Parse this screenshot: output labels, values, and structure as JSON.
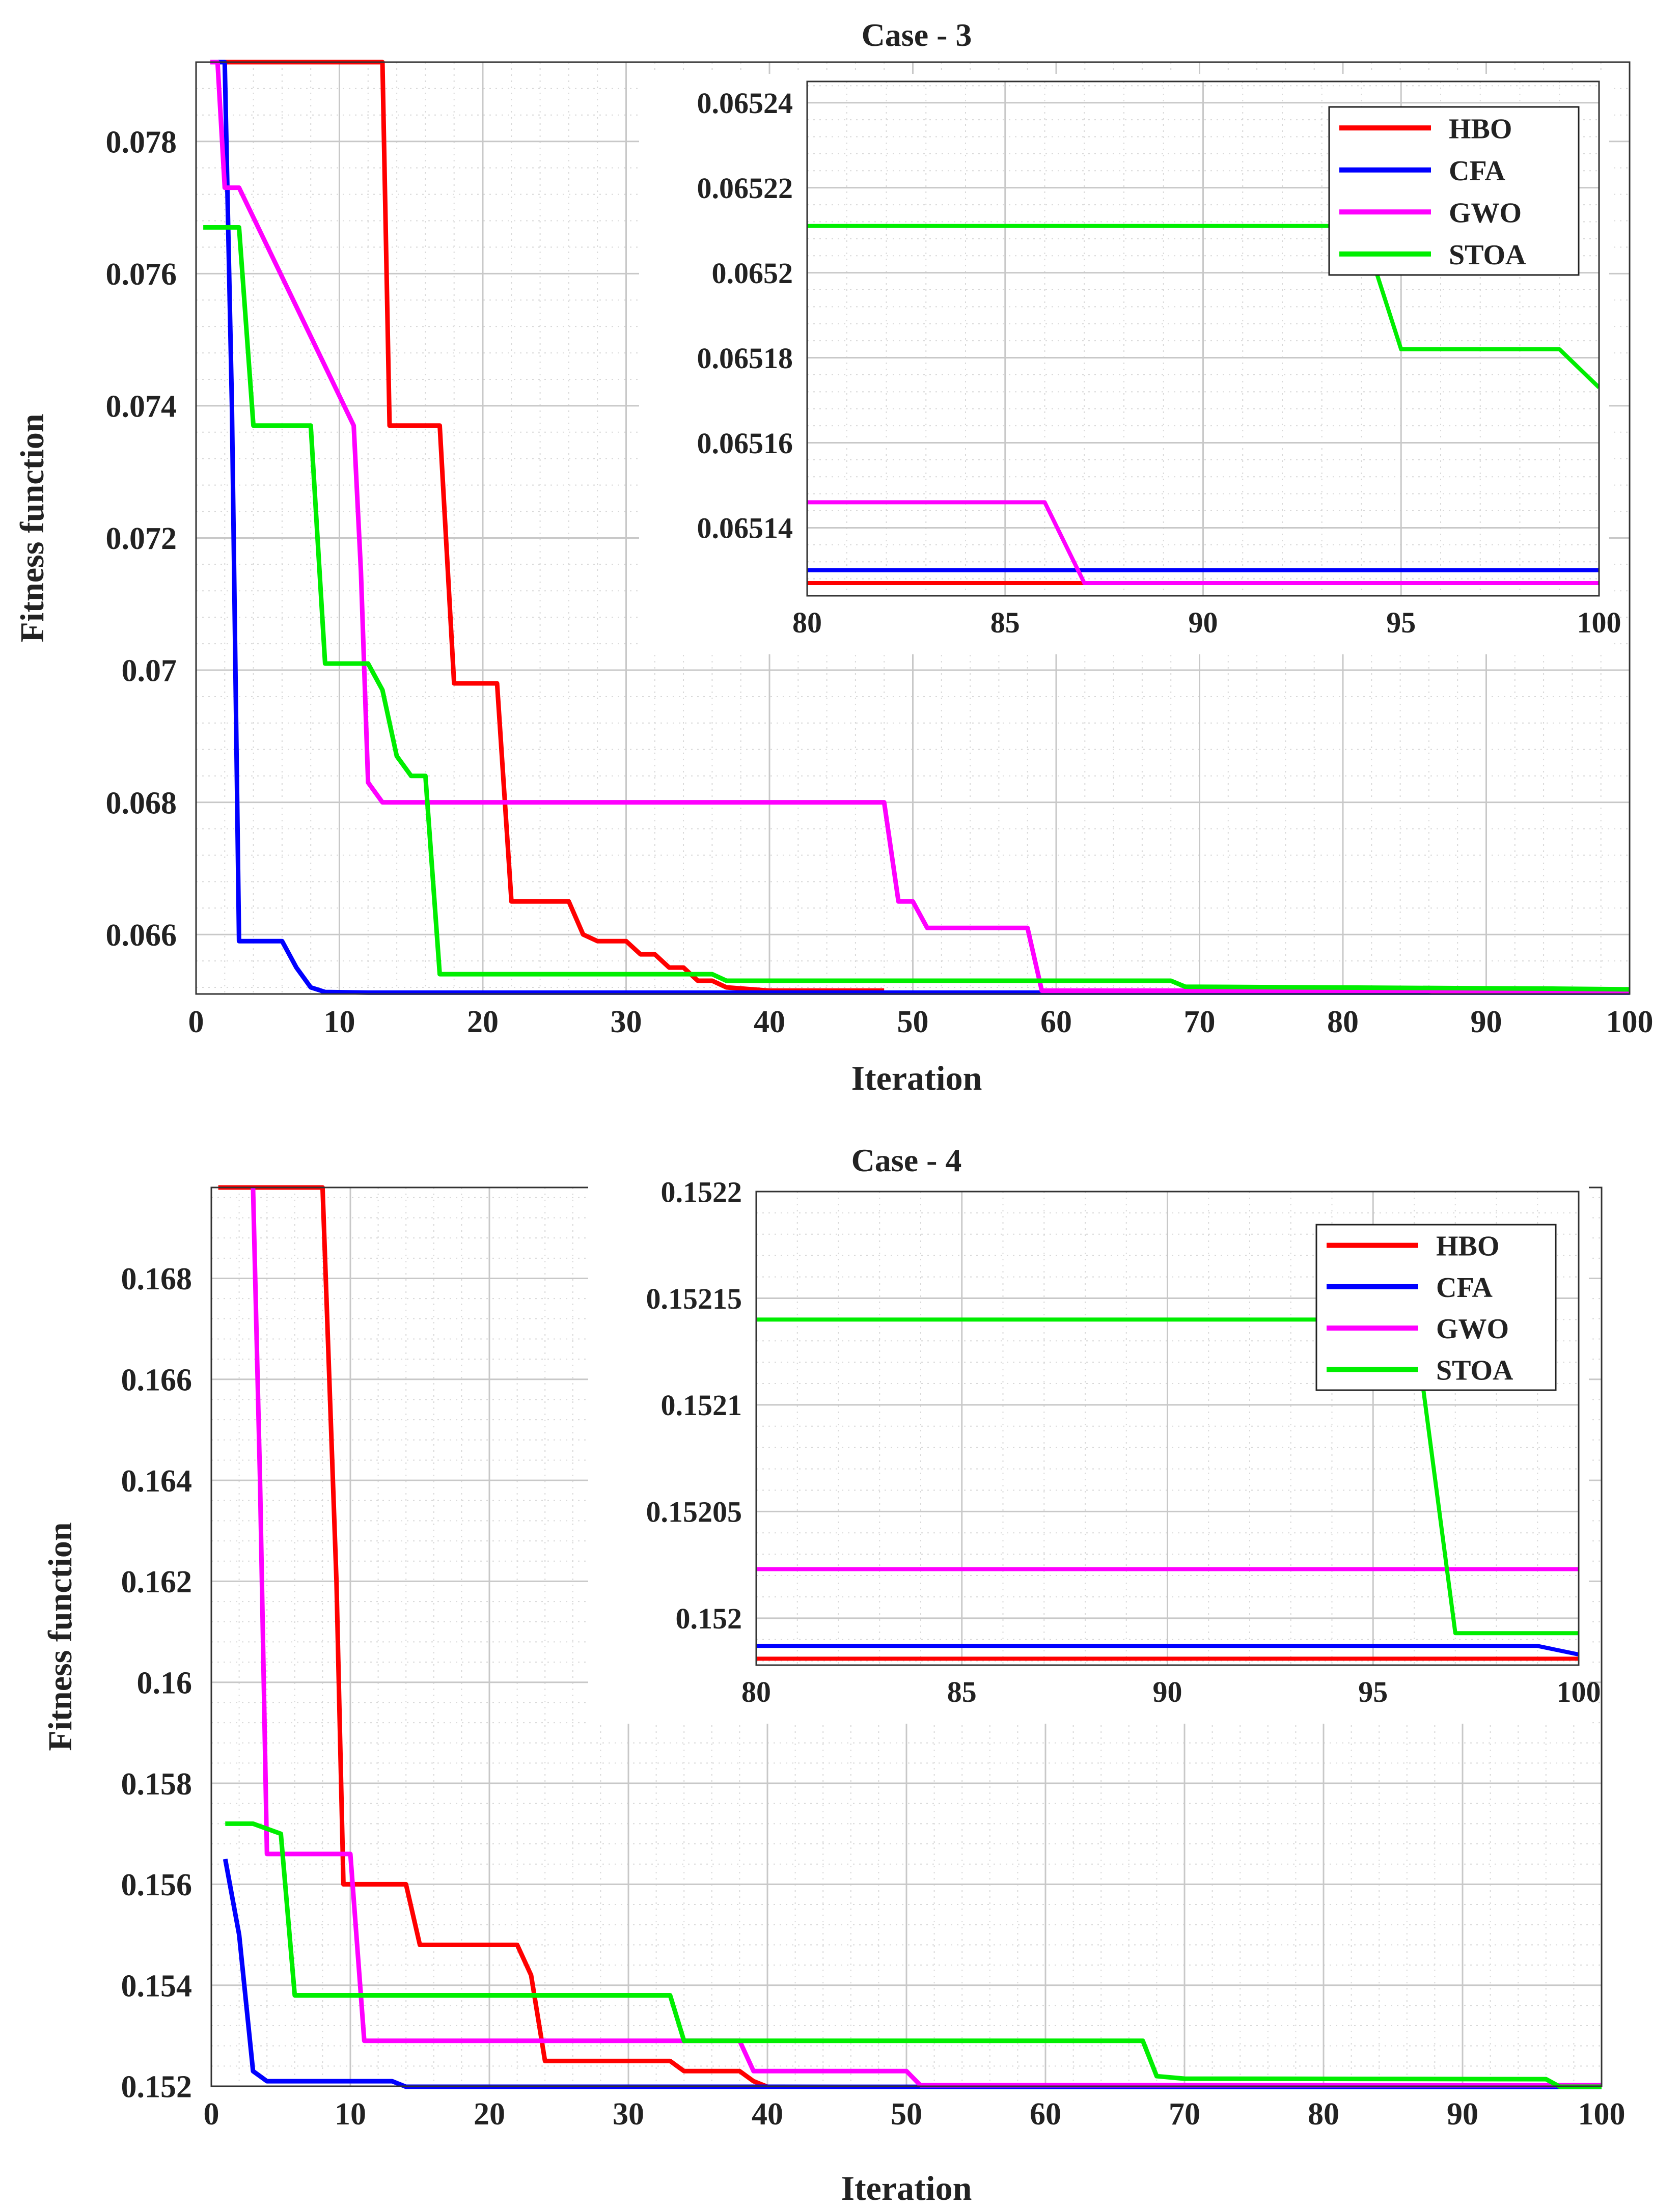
{
  "chart_data": [
    {
      "type": "line",
      "title": "Case - 3",
      "xlabel": "Iteration",
      "ylabel": "Fitness function",
      "xlim": [
        0,
        100
      ],
      "ylim": [
        0.0651,
        0.0792
      ],
      "xticks": [
        0,
        10,
        20,
        30,
        40,
        50,
        60,
        70,
        80,
        90,
        100
      ],
      "xtick_labels": [
        "0",
        "10",
        "20",
        "30",
        "40",
        "50",
        "60",
        "70",
        "80",
        "90",
        "100"
      ],
      "yticks": [
        0.066,
        0.068,
        0.07,
        0.072,
        0.074,
        0.076,
        0.078
      ],
      "ytick_labels": [
        "0.066",
        "0.068",
        "0.07",
        "0.072",
        "0.074",
        "0.076",
        "0.078"
      ],
      "grid": true,
      "series": [
        {
          "name": "HBO",
          "color": "#ff0000",
          "x": [
            1,
            13,
            13.5,
            17,
            18,
            21,
            22,
            26,
            27,
            28,
            30,
            31,
            32,
            33,
            34,
            35,
            36,
            37,
            40,
            48
          ],
          "y": [
            0.0792,
            0.0792,
            0.0737,
            0.0737,
            0.0698,
            0.0698,
            0.0665,
            0.0665,
            0.066,
            0.0659,
            0.0659,
            0.0657,
            0.0657,
            0.0655,
            0.0655,
            0.0653,
            0.0653,
            0.0652,
            0.06515,
            0.06515
          ]
        },
        {
          "name": "CFA",
          "color": "#0000ff",
          "x": [
            1.5,
            2,
            2.5,
            3,
            6,
            7,
            8,
            9,
            12,
            20,
            40,
            60,
            100
          ],
          "y": [
            0.0792,
            0.0792,
            0.074,
            0.0659,
            0.0659,
            0.0655,
            0.0652,
            0.06513,
            0.06512,
            0.06512,
            0.06512,
            0.06512,
            0.06512
          ]
        },
        {
          "name": "GWO",
          "color": "#ff00ff",
          "x": [
            1,
            1.5,
            2,
            3,
            11,
            11.5,
            12,
            13,
            48,
            49,
            50,
            51,
            58,
            59,
            62,
            70,
            86,
            87,
            100
          ],
          "y": [
            0.0792,
            0.0792,
            0.0773,
            0.0773,
            0.0737,
            0.0715,
            0.0683,
            0.068,
            0.068,
            0.0665,
            0.0665,
            0.0661,
            0.0661,
            0.06515,
            0.06515,
            0.06515,
            0.06515,
            0.06513,
            0.06513
          ]
        },
        {
          "name": "STOA",
          "color": "#00ee00",
          "x": [
            0.5,
            3,
            4,
            8,
            9,
            12,
            13,
            14,
            15,
            16,
            17,
            36,
            37,
            68,
            69,
            95,
            100
          ],
          "y": [
            0.0767,
            0.0767,
            0.0737,
            0.0737,
            0.0701,
            0.0701,
            0.0697,
            0.0687,
            0.0684,
            0.0684,
            0.0654,
            0.0654,
            0.0653,
            0.0653,
            0.06521,
            0.06518,
            0.06517
          ]
        }
      ],
      "inset": {
        "xlim": [
          80,
          100
        ],
        "ylim": [
          0.065124,
          0.065245
        ],
        "xticks": [
          80,
          85,
          90,
          95,
          100
        ],
        "xtick_labels": [
          "80",
          "85",
          "90",
          "95",
          "100"
        ],
        "yticks": [
          0.06514,
          0.06516,
          0.06518,
          0.0652,
          0.06522,
          0.06524
        ],
        "ytick_labels": [
          "0.06514",
          "0.06516",
          "0.06518",
          "0.0652",
          "0.06522",
          "0.06524"
        ],
        "legend": [
          "HBO",
          "CFA",
          "GWO",
          "STOA"
        ],
        "legend_position": "top-right",
        "series": [
          {
            "name": "HBO",
            "color": "#ff0000",
            "x": [
              80,
              100
            ],
            "y": [
              0.065127,
              0.065127
            ]
          },
          {
            "name": "CFA",
            "color": "#0000ff",
            "x": [
              80,
              100
            ],
            "y": [
              0.06513,
              0.06513
            ]
          },
          {
            "name": "GWO",
            "color": "#ff00ff",
            "x": [
              80,
              86,
              87,
              100
            ],
            "y": [
              0.065146,
              0.065146,
              0.065127,
              0.065127
            ]
          },
          {
            "name": "STOA",
            "color": "#00ee00",
            "x": [
              80,
              94,
              95,
              99,
              100
            ],
            "y": [
              0.065211,
              0.065211,
              0.065182,
              0.065182,
              0.065173
            ]
          }
        ]
      }
    },
    {
      "type": "line",
      "title": "Case - 4",
      "xlabel": "Iteration",
      "ylabel": "Fitness function",
      "xlim": [
        0,
        100
      ],
      "ylim": [
        0.152,
        0.1698
      ],
      "xticks": [
        0,
        10,
        20,
        30,
        40,
        50,
        60,
        70,
        80,
        90,
        100
      ],
      "xtick_labels": [
        "0",
        "10",
        "20",
        "30",
        "40",
        "50",
        "60",
        "70",
        "80",
        "90",
        "100"
      ],
      "yticks": [
        0.152,
        0.154,
        0.156,
        0.158,
        0.16,
        0.162,
        0.164,
        0.166,
        0.168
      ],
      "ytick_labels": [
        "0.152",
        "0.154",
        "0.156",
        "0.158",
        "0.16",
        "0.162",
        "0.164",
        "0.166",
        "0.168"
      ],
      "grid": true,
      "series": [
        {
          "name": "HBO",
          "color": "#ff0000",
          "x": [
            0.5,
            8,
            9,
            9.5,
            14,
            15,
            22,
            23,
            24,
            33,
            34,
            38,
            39,
            40
          ],
          "y": [
            0.1698,
            0.1698,
            0.162,
            0.156,
            0.156,
            0.1548,
            0.1548,
            0.1542,
            0.1525,
            0.1525,
            0.1523,
            0.1523,
            0.1521,
            0.15199
          ]
        },
        {
          "name": "CFA",
          "color": "#0000ff",
          "x": [
            1,
            2,
            3,
            4,
            8,
            13,
            14,
            40,
            100
          ],
          "y": [
            0.1565,
            0.155,
            0.1523,
            0.1521,
            0.1521,
            0.1521,
            0.15199,
            0.15199,
            0.15198
          ]
        },
        {
          "name": "GWO",
          "color": "#ff00ff",
          "x": [
            3,
            3.5,
            4,
            10,
            11,
            38,
            39,
            50,
            51,
            100
          ],
          "y": [
            0.1698,
            0.164,
            0.1566,
            0.1566,
            0.1529,
            0.1529,
            0.1523,
            0.1523,
            0.15202,
            0.15202
          ]
        },
        {
          "name": "STOA",
          "color": "#00ee00",
          "x": [
            1,
            3,
            5,
            6,
            33,
            34,
            67,
            68,
            70,
            96,
            97,
            100
          ],
          "y": [
            0.1572,
            0.1572,
            0.157,
            0.1538,
            0.1538,
            0.1529,
            0.1529,
            0.1522,
            0.15215,
            0.15214,
            0.15199,
            0.15199
          ]
        }
      ],
      "inset": {
        "xlim": [
          80,
          100
        ],
        "ylim": [
          0.151978,
          0.1522
        ],
        "xticks": [
          80,
          85,
          90,
          95,
          100
        ],
        "xtick_labels": [
          "80",
          "85",
          "90",
          "95",
          "100"
        ],
        "yticks": [
          0.152,
          0.15205,
          0.1521,
          0.15215,
          0.1522
        ],
        "ytick_labels": [
          "0.152",
          "0.15205",
          "0.1521",
          "0.15215",
          "0.1522"
        ],
        "legend": [
          "HBO",
          "CFA",
          "GWO",
          "STOA"
        ],
        "legend_position": "top-right",
        "series": [
          {
            "name": "HBO",
            "color": "#ff0000",
            "x": [
              80,
              100
            ],
            "y": [
              0.151981,
              0.151981
            ]
          },
          {
            "name": "CFA",
            "color": "#0000ff",
            "x": [
              80,
              99,
              100
            ],
            "y": [
              0.151987,
              0.151987,
              0.151983
            ]
          },
          {
            "name": "GWO",
            "color": "#ff00ff",
            "x": [
              80,
              100
            ],
            "y": [
              0.152023,
              0.152023
            ]
          },
          {
            "name": "STOA",
            "color": "#00ee00",
            "x": [
              80,
              96,
              97,
              100
            ],
            "y": [
              0.15214,
              0.15214,
              0.151993,
              0.151993
            ]
          }
        ]
      }
    }
  ]
}
